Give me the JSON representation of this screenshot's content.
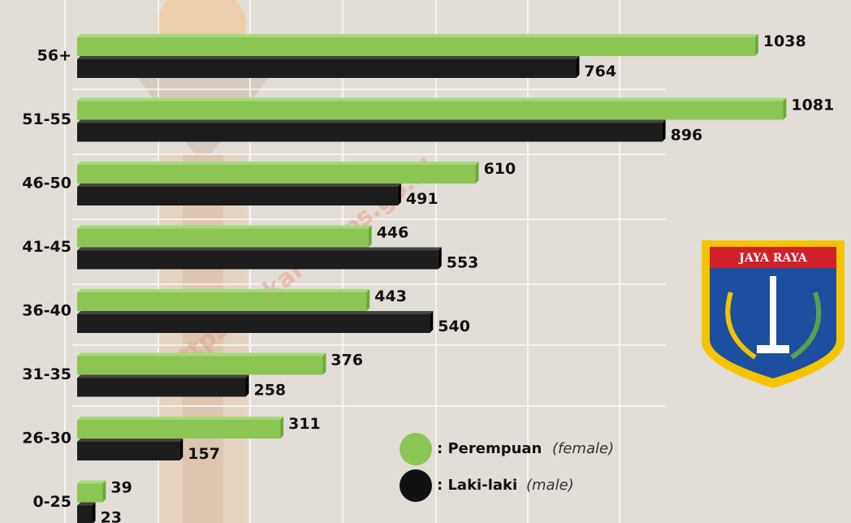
{
  "chart_data": {
    "type": "barh",
    "categories": [
      "56+",
      "51-55",
      "46-50",
      "41-45",
      "36-40",
      "31-35",
      "26-30",
      "0-25"
    ],
    "series": [
      {
        "name": ": Perempuan",
        "note": "(female)",
        "color": "#8bc553",
        "values": [
          1038,
          1081,
          610,
          446,
          443,
          376,
          311,
          39
        ]
      },
      {
        "name": ": Laki-laki",
        "note": "(male)",
        "color": "#1c1c1c",
        "values": [
          764,
          896,
          491,
          553,
          540,
          258,
          157,
          23
        ]
      }
    ],
    "xlim": [
      0,
      1180
    ],
    "watermark": "https://jakarta.bps.go.id",
    "emblem_text": "JAYA RAYA"
  }
}
